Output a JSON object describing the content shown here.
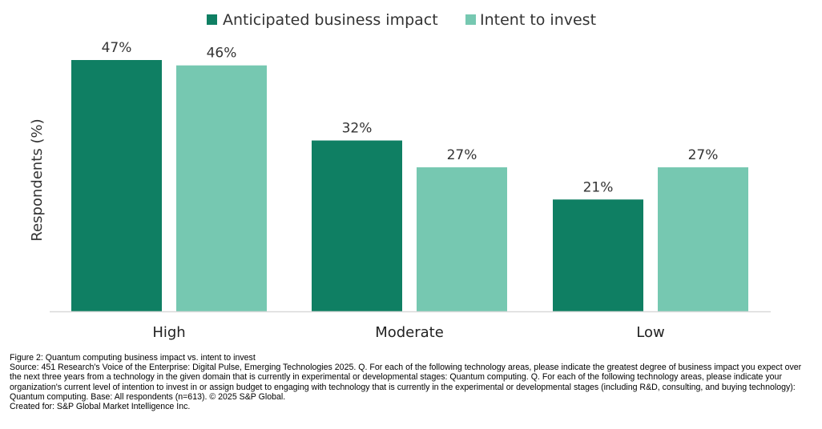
{
  "chart_data": {
    "type": "bar",
    "title": "",
    "categories": [
      "High",
      "Moderate",
      "Low"
    ],
    "series": [
      {
        "name": "Anticipated business impact",
        "values": [
          47,
          32,
          21
        ],
        "labels": [
          "47%",
          "32%",
          "21%"
        ],
        "color": "#0f7f63"
      },
      {
        "name": "Intent to invest",
        "values": [
          46,
          27,
          27
        ],
        "labels": [
          "46%",
          "27%",
          "27%"
        ],
        "color": "#76c8b1"
      }
    ],
    "xlabel": "",
    "ylabel": "Respondents (%)",
    "ylim": [
      0,
      47
    ],
    "grid": false,
    "legend_position": "top-center",
    "baseline_color": "#d9d9d9"
  },
  "caption": {
    "figure": "Figure 2: Quantum computing business impact vs. intent to invest",
    "source": "Source: 451 Research's Voice of the Enterprise: Digital Pulse, Emerging Technologies 2025.  Q. For each of the following technology areas, please indicate the greatest degree of business impact you expect over the next three years from a technology in the given domain that is currently in experimental or developmental stages: Quantum computing.  Q. For each of the following technology areas, please indicate your organization's current level of intention to invest in or assign budget to engaging with technology that is currently in the experimental or developmental stages (including R&D, consulting, and buying technology): Quantum computing.  Base: All respondents (n=613).  © 2025 S&P Global.",
    "created_for": "Created for: S&P Global Market Intelligence Inc."
  }
}
